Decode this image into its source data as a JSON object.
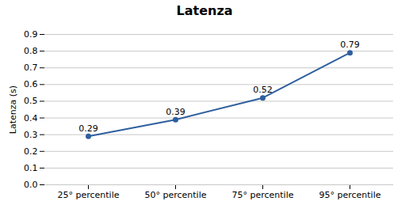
{
  "chart_data": {
    "type": "line",
    "title": "Latenza",
    "ylabel": "Latenza (s)",
    "categories": [
      "25° percentile",
      "50° percentile",
      "75° percentile",
      "95° percentile"
    ],
    "values": [
      0.29,
      0.39,
      0.52,
      0.79
    ],
    "color": "#2E5F9E",
    "marker": "circle",
    "ylim": [
      0,
      0.9
    ],
    "yticks": [
      {
        "value": 0,
        "label": "0.0"
      },
      0.1,
      0.2,
      0.3,
      0.4,
      0.5,
      0.6,
      0.7,
      0.8,
      0.9
    ],
    "grid": true,
    "data_labels": true
  }
}
